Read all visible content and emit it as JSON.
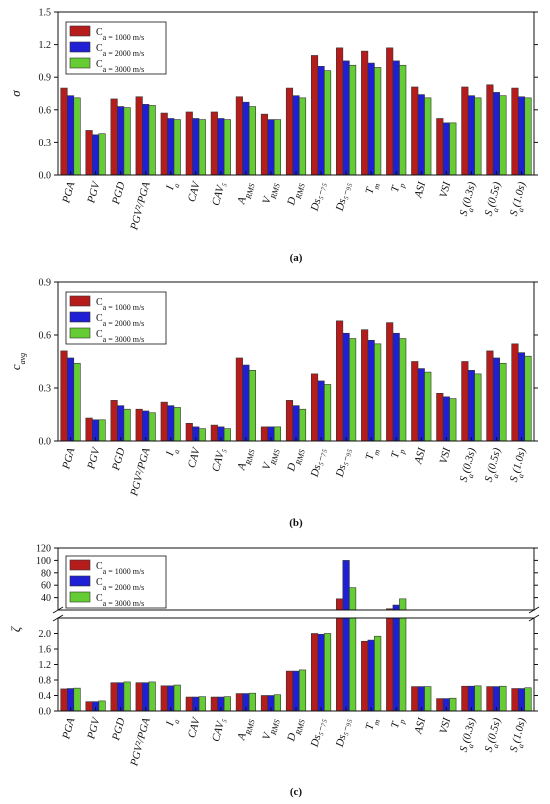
{
  "chart_data": [
    {
      "type": "bar",
      "panel_label": "(a)",
      "ylabel": "σ",
      "ylim": [
        0,
        1.5
      ],
      "yticks": [
        "0.0",
        "0.3",
        "0.6",
        "0.9",
        "1.2",
        "1.5"
      ],
      "legend_position": "top-left",
      "categories": [
        "PGA",
        "PGV",
        "PGD",
        "PGV²/PGA",
        "I_a",
        "CAV",
        "CAV₅",
        "A_RMS",
        "V_RMS",
        "D_RMS",
        "Ds₅₋₇₅",
        "Ds₅₋₉₅",
        "T_m",
        "T_p",
        "ASI",
        "VSI",
        "S_a(0.3s)",
        "S_a(0.5s)",
        "S_a(1.0s)"
      ],
      "series": [
        {
          "name": "C_a = 1000 m/s",
          "color": "#b71c1c",
          "values": [
            0.8,
            0.41,
            0.7,
            0.72,
            0.57,
            0.58,
            0.58,
            0.72,
            0.56,
            0.8,
            1.1,
            1.17,
            1.14,
            1.17,
            0.81,
            0.52,
            0.81,
            0.83,
            0.8
          ]
        },
        {
          "name": "C_a = 2000 m/s",
          "color": "#1f1fd6",
          "values": [
            0.73,
            0.37,
            0.63,
            0.65,
            0.52,
            0.52,
            0.52,
            0.67,
            0.51,
            0.73,
            1.0,
            1.05,
            1.03,
            1.05,
            0.74,
            0.48,
            0.73,
            0.76,
            0.72
          ]
        },
        {
          "name": "C_a = 3000 m/s",
          "color": "#66cc33",
          "values": [
            0.71,
            0.38,
            0.62,
            0.64,
            0.51,
            0.51,
            0.51,
            0.63,
            0.51,
            0.71,
            0.96,
            1.01,
            0.99,
            1.01,
            0.71,
            0.48,
            0.71,
            0.73,
            0.71
          ]
        }
      ]
    },
    {
      "type": "bar",
      "panel_label": "(b)",
      "ylabel": "c_avg",
      "ylim": [
        0,
        0.9
      ],
      "yticks": [
        "0.0",
        "0.3",
        "0.6",
        "0.9"
      ],
      "legend_position": "top-left",
      "categories": [
        "PGA",
        "PGV",
        "PGD",
        "PGV²/PGA",
        "I_a",
        "CAV",
        "CAV₅",
        "A_RMS",
        "V_RMS",
        "D_RMS",
        "Ds₅₋₇₅",
        "Ds₅₋₉₅",
        "T_m",
        "T_p",
        "ASI",
        "VSI",
        "S_a(0.3s)",
        "S_a(0.5s)",
        "S_a(1.0s)"
      ],
      "series": [
        {
          "name": "C_a = 1000 m/s",
          "color": "#b71c1c",
          "values": [
            0.51,
            0.13,
            0.23,
            0.18,
            0.22,
            0.1,
            0.09,
            0.47,
            0.08,
            0.23,
            0.38,
            0.68,
            0.63,
            0.67,
            0.45,
            0.27,
            0.45,
            0.51,
            0.55
          ]
        },
        {
          "name": "C_a = 2000 m/s",
          "color": "#1f1fd6",
          "values": [
            0.47,
            0.12,
            0.2,
            0.17,
            0.2,
            0.08,
            0.08,
            0.43,
            0.08,
            0.2,
            0.34,
            0.61,
            0.57,
            0.61,
            0.41,
            0.25,
            0.4,
            0.47,
            0.5
          ]
        },
        {
          "name": "C_a = 3000 m/s",
          "color": "#66cc33",
          "values": [
            0.44,
            0.12,
            0.18,
            0.16,
            0.19,
            0.07,
            0.07,
            0.4,
            0.08,
            0.18,
            0.32,
            0.58,
            0.55,
            0.58,
            0.39,
            0.24,
            0.38,
            0.44,
            0.48
          ]
        }
      ]
    },
    {
      "type": "bar",
      "panel_label": "(c)",
      "ylabel": "ζ",
      "broken_axis": true,
      "lower_ylim": [
        0,
        2.4
      ],
      "upper_ylim": [
        0,
        120
      ],
      "lower_yticks": [
        "0.0",
        "0.4",
        "0.8",
        "1.2",
        "1.6",
        "2.0"
      ],
      "upper_yticks": [
        "40",
        "60",
        "80",
        "100",
        "120"
      ],
      "legend_position": "top-left",
      "categories": [
        "PGA",
        "PGV",
        "PGD",
        "PGV²/PGA",
        "I_a",
        "CAV",
        "CAV₅",
        "A_RMS",
        "V_RMS",
        "D_RMS",
        "Ds₅₋₇₅",
        "Ds₅₋₉₅",
        "T_m",
        "T_p",
        "ASI",
        "VSI",
        "S_a(0.3s)",
        "S_a(0.5s)",
        "S_a(1.0s)"
      ],
      "series": [
        {
          "name": "C_a = 1000 m/s",
          "color": "#b71c1c",
          "values": [
            0.57,
            0.24,
            0.73,
            0.73,
            0.65,
            0.36,
            0.36,
            0.45,
            0.4,
            1.03,
            2.0,
            38,
            1.8,
            22,
            0.63,
            0.32,
            0.64,
            0.63,
            0.58
          ]
        },
        {
          "name": "C_a = 2000 m/s",
          "color": "#1f1fd6",
          "values": [
            0.58,
            0.24,
            0.73,
            0.73,
            0.65,
            0.36,
            0.36,
            0.45,
            0.4,
            1.03,
            1.98,
            100,
            1.83,
            28,
            0.63,
            0.32,
            0.64,
            0.63,
            0.58
          ]
        },
        {
          "name": "C_a = 3000 m/s",
          "color": "#66cc33",
          "values": [
            0.59,
            0.26,
            0.75,
            0.75,
            0.67,
            0.37,
            0.37,
            0.46,
            0.42,
            1.06,
            2.0,
            56,
            1.93,
            38,
            0.63,
            0.33,
            0.65,
            0.64,
            0.6
          ]
        }
      ]
    }
  ]
}
